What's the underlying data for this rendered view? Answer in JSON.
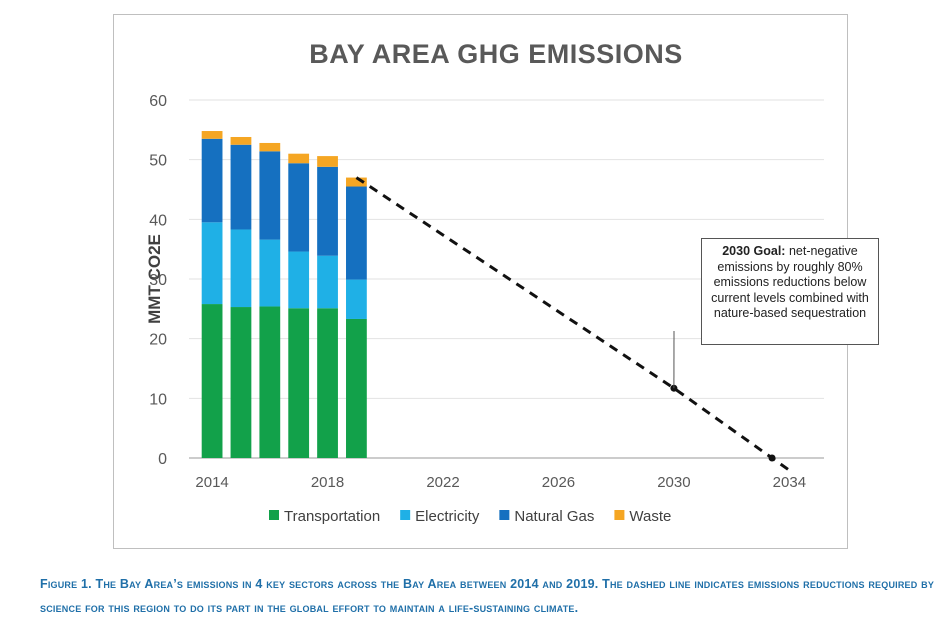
{
  "chart_data": {
    "type": "bar",
    "stacked": true,
    "title": "BAY AREA GHG EMISSIONS",
    "ylabel": "MMT CO2E",
    "xlabel": "",
    "ylim": [
      0,
      60
    ],
    "xlim": [
      2013.2,
      2035.2
    ],
    "yticks": [
      0,
      10,
      20,
      30,
      40,
      50,
      60
    ],
    "xticks": [
      2014,
      2018,
      2022,
      2026,
      2030,
      2034
    ],
    "grid": "horizontal",
    "legend_position": "bottom",
    "x": [
      2014,
      2015,
      2016,
      2017,
      2018,
      2019
    ],
    "series": [
      {
        "name": "Transportation",
        "color": "#12a14a",
        "values": [
          25.8,
          25.3,
          25.4,
          25.1,
          25.1,
          23.3
        ]
      },
      {
        "name": "Electricity",
        "color": "#1fb0e6",
        "values": [
          13.7,
          13.0,
          11.2,
          9.5,
          8.8,
          6.6
        ]
      },
      {
        "name": "Natural Gas",
        "color": "#1570c0",
        "values": [
          14.0,
          14.2,
          14.8,
          14.8,
          14.9,
          15.6
        ]
      },
      {
        "name": "Waste",
        "color": "#f5a623",
        "values": [
          1.3,
          1.3,
          1.4,
          1.6,
          1.8,
          1.5
        ]
      }
    ],
    "goal_line": {
      "style": "dashed",
      "points": [
        [
          2019,
          47
        ],
        [
          2030,
          11.7
        ],
        [
          2033.4,
          0
        ]
      ],
      "extends_to_x": 2034
    },
    "annotation": {
      "bold": "2030 Goal:",
      "text": " net-negative emissions by roughly 80% emissions reductions below current levels combined with nature-based sequestration",
      "points_to": [
        2030,
        11.7
      ]
    }
  },
  "caption": "Figure 1. The Bay Area’s emissions in 4 key sectors across the Bay Area between 2014 and 2019. The dashed line indicates emissions reductions required by science for this region to do its part in the global effort to maintain a life-sustaining climate."
}
